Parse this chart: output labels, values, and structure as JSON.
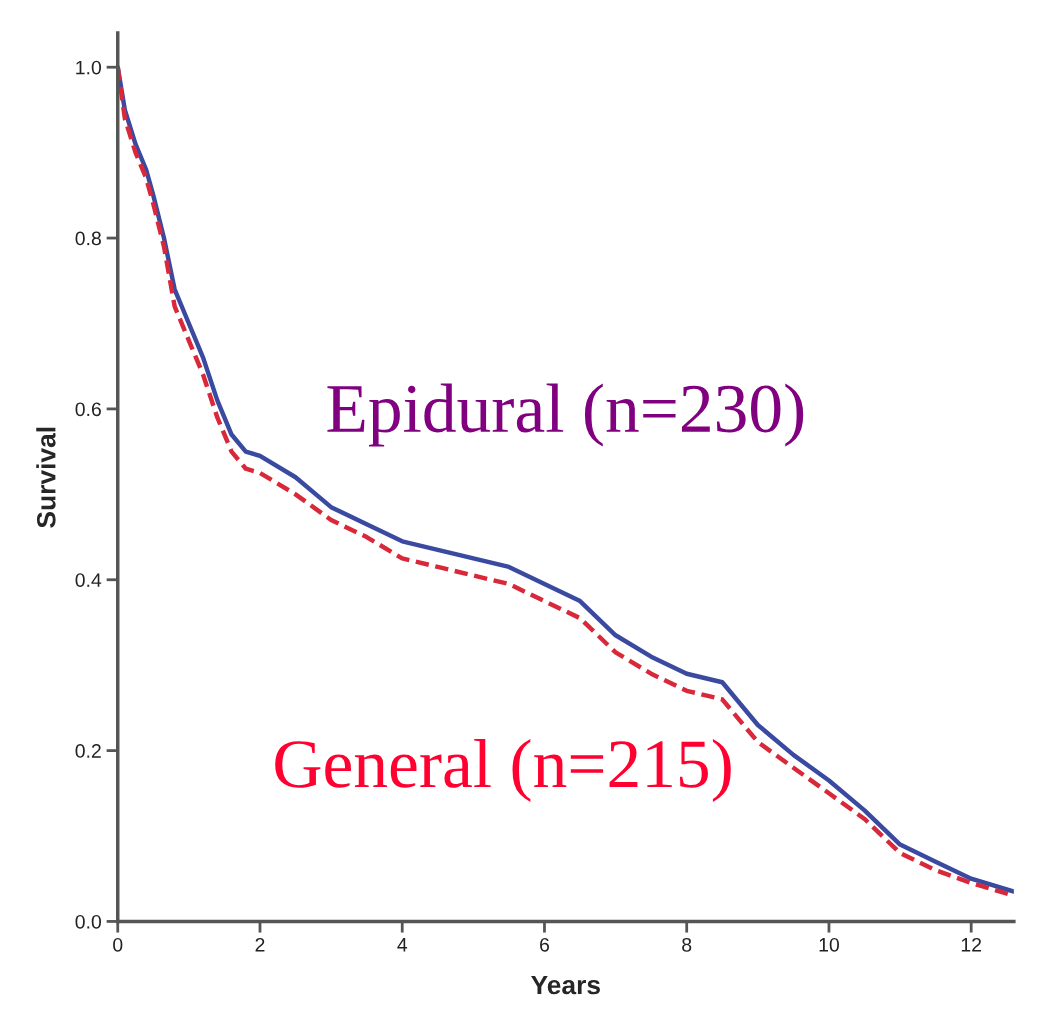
{
  "chart_data": {
    "type": "line",
    "xlabel": "Years",
    "ylabel": "Survival",
    "x": [
      0,
      0.1,
      0.25,
      0.4,
      0.5,
      0.65,
      0.8,
      1.0,
      1.2,
      1.4,
      1.6,
      1.8,
      2.0,
      2.5,
      3.0,
      3.5,
      4.0,
      4.5,
      5.0,
      5.5,
      6.0,
      6.5,
      7.0,
      7.5,
      8.0,
      8.5,
      9.0,
      9.5,
      10.0,
      10.5,
      11.0,
      11.5,
      12.0,
      12.6
    ],
    "series": [
      {
        "name": "Epidural (n=230)",
        "color": "#3a4aa0",
        "line_style": "solid",
        "values": [
          1.0,
          0.95,
          0.91,
          0.88,
          0.85,
          0.8,
          0.74,
          0.7,
          0.66,
          0.61,
          0.57,
          0.55,
          0.545,
          0.52,
          0.485,
          0.465,
          0.445,
          0.435,
          0.425,
          0.415,
          0.395,
          0.375,
          0.335,
          0.31,
          0.29,
          0.28,
          0.23,
          0.195,
          0.165,
          0.13,
          0.09,
          0.07,
          0.05,
          0.035
        ]
      },
      {
        "name": "General (n=215)",
        "color": "#d8283a",
        "line_style": "dashed",
        "values": [
          1.0,
          0.94,
          0.9,
          0.87,
          0.84,
          0.79,
          0.72,
          0.68,
          0.64,
          0.59,
          0.55,
          0.53,
          0.525,
          0.5,
          0.47,
          0.45,
          0.425,
          0.415,
          0.405,
          0.395,
          0.375,
          0.355,
          0.315,
          0.29,
          0.27,
          0.26,
          0.21,
          0.18,
          0.15,
          0.12,
          0.08,
          0.06,
          0.045,
          0.03
        ]
      }
    ],
    "xlim": [
      0,
      12.6
    ],
    "ylim": [
      0,
      1.04
    ],
    "xticks": [
      0,
      2,
      4,
      6,
      8,
      10,
      12
    ],
    "yticks": [
      {
        "value": 0,
        "label": "0.0"
      },
      0.2,
      0.4,
      0.6,
      0.8,
      {
        "value": 1,
        "label": "1.0"
      }
    ],
    "grid": false,
    "legend": false,
    "marker": "none"
  }
}
